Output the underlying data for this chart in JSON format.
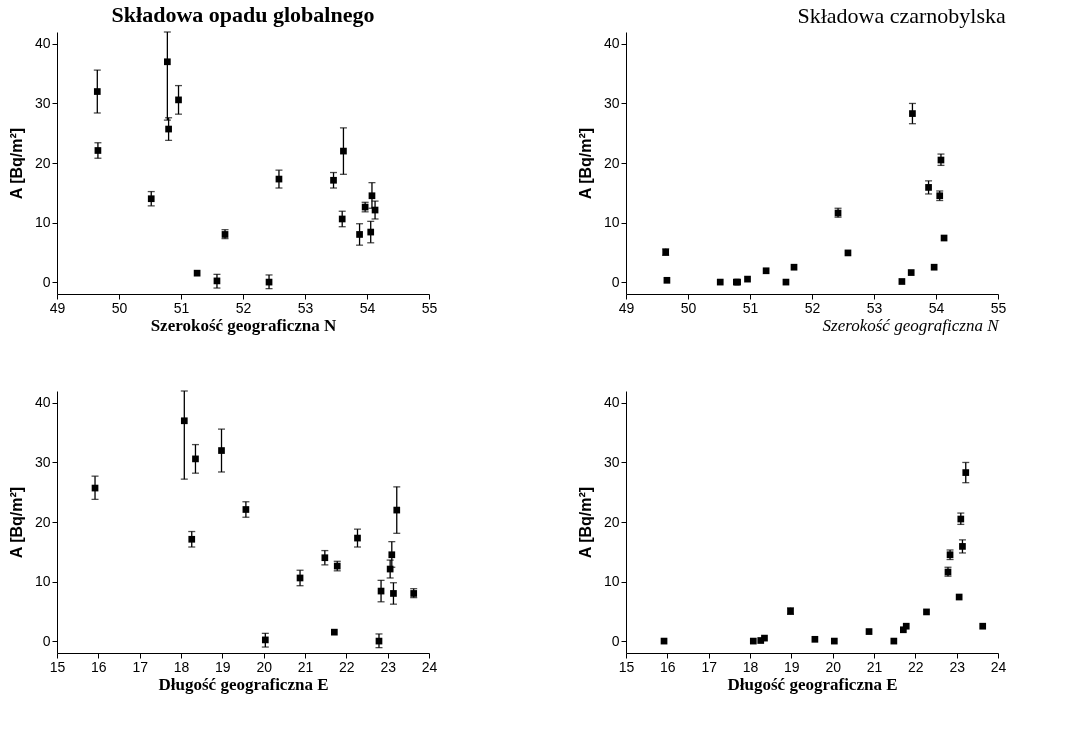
{
  "chart_data": [
    {
      "type": "scatter",
      "title": "Składowa opadu globalnego",
      "xlabel": "Szerokość geograficzna N",
      "ylabel": "A [Bq/m²]",
      "marker": "square",
      "color": "#000000",
      "x": [
        49.65,
        49.66,
        50.52,
        50.78,
        50.8,
        50.96,
        51.26,
        51.58,
        51.71,
        52.42,
        52.58,
        53.46,
        53.6,
        53.62,
        53.88,
        53.97,
        54.06,
        54.08,
        54.13
      ],
      "values": [
        32,
        22.1,
        14.0,
        37,
        25.7,
        30.6,
        1.5,
        0.2,
        8.0,
        0,
        17.3,
        17.1,
        10.6,
        22.0,
        8.0,
        12.6,
        8.4,
        14.5,
        12.1
      ],
      "errors": [
        [
          28.4,
          35.6
        ],
        [
          20.8,
          23.4
        ],
        [
          12.8,
          15.2
        ],
        [
          27.2,
          42
        ],
        [
          23.8,
          27.6
        ],
        [
          28.2,
          33.0
        ],
        null,
        [
          -1,
          1.3
        ],
        [
          7.3,
          8.8
        ],
        [
          -1.1,
          1.2
        ],
        [
          15.8,
          18.8
        ],
        [
          15.8,
          18.4
        ],
        [
          9.3,
          11.9
        ],
        [
          18.1,
          25.9
        ],
        [
          6.2,
          9.8
        ],
        [
          11.8,
          13.4
        ],
        [
          6.6,
          10.2
        ],
        [
          12.4,
          16.7
        ],
        [
          10.6,
          13.6
        ]
      ],
      "xlim": [
        49,
        55
      ],
      "xticks": [
        49,
        50,
        51,
        52,
        53,
        54,
        55
      ],
      "ylim": [
        -2,
        42
      ],
      "yticks": [
        0,
        10,
        20,
        30,
        40
      ]
    },
    {
      "type": "scatter",
      "title": "Składowa czarnobylska",
      "xlabel": "Szerokość geograficzna N",
      "ylabel": "A [Bq/m²]",
      "marker": "square",
      "color": "#000000",
      "x": [
        49.64,
        49.66,
        50.52,
        50.78,
        50.8,
        50.96,
        51.26,
        51.58,
        51.71,
        52.42,
        52.58,
        53.45,
        53.6,
        53.62,
        53.88,
        53.97,
        54.06,
        54.08,
        54.13
      ],
      "values": [
        5.0,
        0.3,
        0,
        0,
        0,
        0.5,
        1.9,
        0,
        2.5,
        11.6,
        4.9,
        0.1,
        1.6,
        28.3,
        15.9,
        2.5,
        14.5,
        20.5,
        7.4
      ],
      "errors": [
        [
          4.5,
          5.6
        ],
        null,
        null,
        null,
        null,
        null,
        null,
        null,
        null,
        [
          10.9,
          12.4
        ],
        null,
        null,
        null,
        [
          26.6,
          30.0
        ],
        [
          14.8,
          17.0
        ],
        null,
        [
          13.7,
          15.3
        ],
        [
          19.6,
          21.5
        ],
        null
      ],
      "xlim": [
        49,
        55
      ],
      "xticks": [
        49,
        50,
        51,
        52,
        53,
        54,
        55
      ],
      "ylim": [
        -2,
        42
      ],
      "yticks": [
        0,
        10,
        20,
        30,
        40
      ]
    },
    {
      "type": "scatter",
      "xlabel": "Długość geograficzna E",
      "ylabel": "A [Bq/m²]",
      "marker": "square",
      "color": "#000000",
      "x": [
        15.92,
        18.08,
        18.26,
        18.35,
        18.98,
        19.57,
        20.04,
        20.88,
        21.48,
        21.71,
        21.78,
        22.27,
        22.79,
        22.84,
        23.06,
        23.1,
        23.14,
        23.22,
        23.63
      ],
      "values": [
        25.7,
        37,
        17.1,
        30.6,
        32,
        22.1,
        0.2,
        10.6,
        14.0,
        1.5,
        12.6,
        17.3,
        0,
        8.4,
        12.1,
        14.5,
        8.0,
        22.0,
        8.0
      ],
      "errors": [
        [
          23.8,
          27.7
        ],
        [
          27.2,
          42
        ],
        [
          15.8,
          18.4
        ],
        [
          28.2,
          33.0
        ],
        [
          28.4,
          35.6
        ],
        [
          20.8,
          23.4
        ],
        [
          -1,
          1.3
        ],
        [
          9.3,
          11.9
        ],
        [
          12.8,
          15.2
        ],
        null,
        [
          11.8,
          13.4
        ],
        [
          15.8,
          18.8
        ],
        [
          -1.1,
          1.2
        ],
        [
          6.6,
          10.2
        ],
        [
          10.6,
          13.6
        ],
        [
          12.4,
          16.7
        ],
        [
          6.2,
          9.8
        ],
        [
          18.1,
          25.9
        ],
        [
          7.3,
          8.8
        ]
      ],
      "xlim": [
        15,
        24
      ],
      "xticks": [
        15,
        16,
        17,
        18,
        19,
        20,
        21,
        22,
        23,
        24
      ],
      "ylim": [
        -2,
        42
      ],
      "yticks": [
        0,
        10,
        20,
        30,
        40
      ]
    },
    {
      "type": "scatter",
      "xlabel": "Długość geograficzna E",
      "ylabel": "A [Bq/m²]",
      "marker": "square",
      "color": "#000000",
      "x": [
        15.92,
        18.08,
        18.26,
        18.35,
        18.98,
        19.57,
        20.04,
        20.88,
        21.48,
        21.71,
        21.78,
        22.27,
        22.79,
        22.84,
        23.06,
        23.1,
        23.14,
        23.22,
        23.63
      ],
      "values": [
        0,
        0,
        0.1,
        0.5,
        5.0,
        0.3,
        0,
        1.6,
        0,
        1.9,
        2.5,
        4.9,
        11.6,
        14.5,
        7.4,
        20.5,
        15.9,
        28.3,
        2.5
      ],
      "errors": [
        null,
        null,
        null,
        null,
        [
          4.5,
          5.6
        ],
        null,
        null,
        null,
        null,
        null,
        null,
        null,
        [
          10.9,
          12.4
        ],
        [
          13.7,
          15.3
        ],
        null,
        [
          19.6,
          21.5
        ],
        [
          14.8,
          17.0
        ],
        [
          26.6,
          30.0
        ],
        null
      ],
      "xlim": [
        15,
        24
      ],
      "xticks": [
        15,
        16,
        17,
        18,
        19,
        20,
        21,
        22,
        23,
        24
      ],
      "ylim": [
        -2,
        42
      ],
      "yticks": [
        0,
        10,
        20,
        30,
        40
      ]
    }
  ]
}
